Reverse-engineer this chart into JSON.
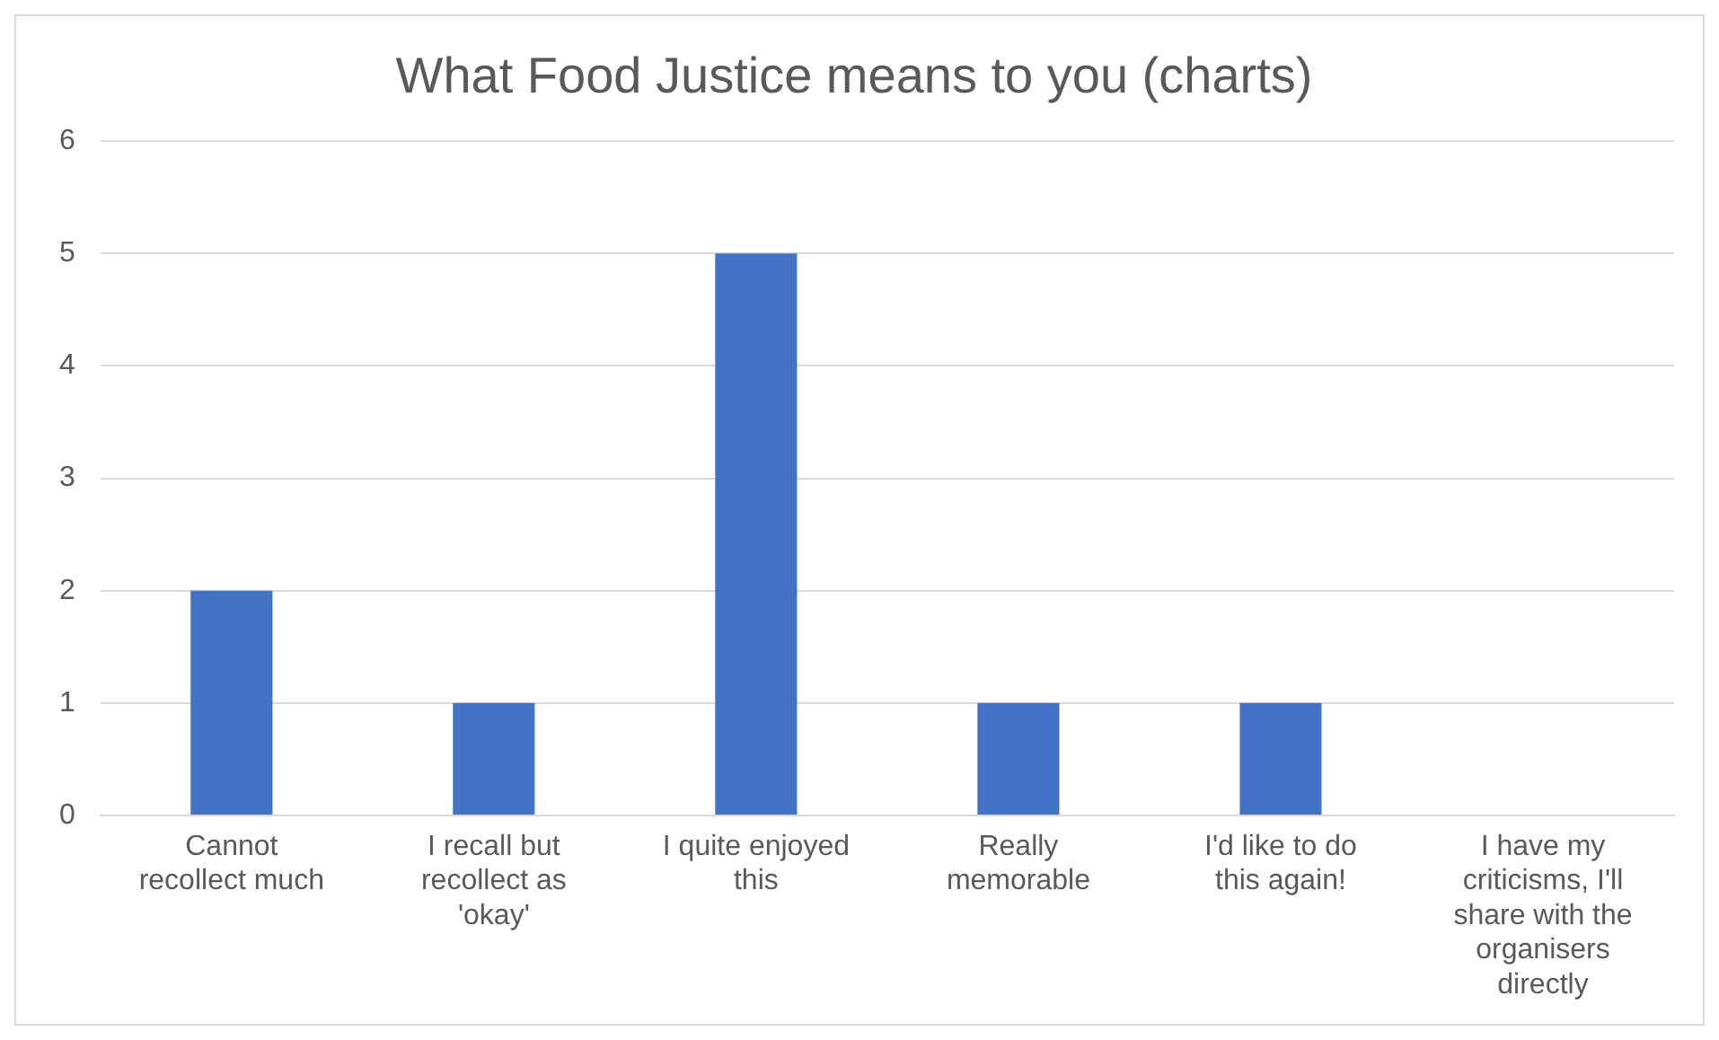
{
  "chart_data": {
    "type": "bar",
    "title": "What Food Justice means to you (charts)",
    "categories": [
      "Cannot recollect much",
      "I recall but recollect as 'okay'",
      "I quite enjoyed this",
      "Really memorable",
      "I'd like to do this again!",
      "I have my criticisms, I'll share with the organisers directly"
    ],
    "values": [
      2,
      1,
      5,
      1,
      1,
      0
    ],
    "color": "#4472c4",
    "ylim": [
      0,
      6
    ],
    "yticks": [
      0,
      1,
      2,
      3,
      4,
      5,
      6
    ],
    "grid": "y",
    "legend": false
  }
}
